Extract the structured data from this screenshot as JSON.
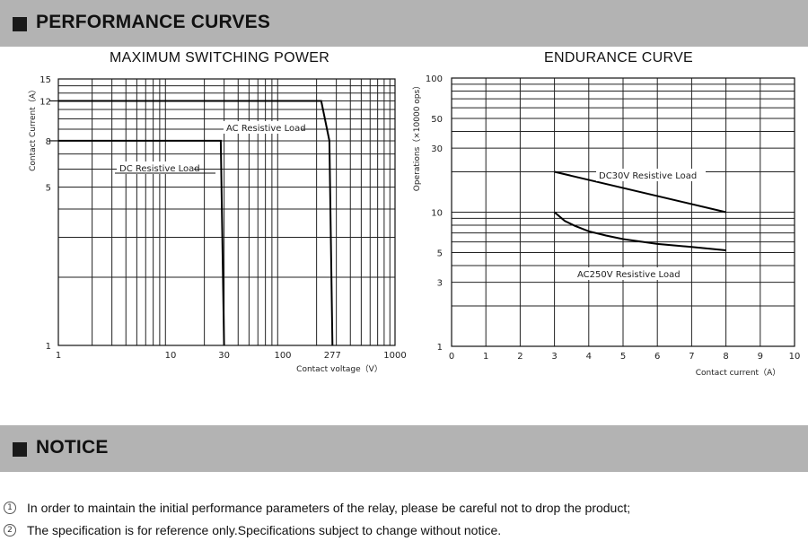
{
  "header": {
    "title": "PERFORMANCE CURVES"
  },
  "notice": {
    "title": "NOTICE",
    "items": [
      {
        "num": "1",
        "text": "In order to maintain the initial performance parameters of the relay, please be careful not to drop the product;"
      },
      {
        "num": "2",
        "text": "The specification is for reference only.Specifications subject to change without notice."
      }
    ]
  },
  "chart_data": [
    {
      "type": "line",
      "title": "MAXIMUM SWITCHING POWER",
      "xlabel": "Contact voltage（V）",
      "ylabel": "Contact Current（A）",
      "xscale": "log",
      "yscale": "log",
      "xlim": [
        1,
        1000
      ],
      "ylim": [
        1,
        15
      ],
      "xticks": [
        1,
        10,
        30,
        100,
        277,
        1000
      ],
      "xtick_labels": [
        "1",
        "10",
        "30",
        "100",
        "277",
        "1000"
      ],
      "yticks": [
        1,
        5,
        8,
        12,
        15
      ],
      "ytick_labels": [
        "1",
        "5",
        "8",
        "12",
        "15"
      ],
      "grid": true,
      "series": [
        {
          "name": "DC Resistive Load",
          "x": [
            1,
            28,
            30
          ],
          "y": [
            8,
            8,
            1
          ]
        },
        {
          "name": "AC Resistive Load",
          "x": [
            1,
            220,
            260,
            277
          ],
          "y": [
            12,
            12,
            8,
            1
          ]
        }
      ]
    },
    {
      "type": "line",
      "title": "ENDURANCE CURVE",
      "xlabel": "Contact current（A）",
      "ylabel": "Operations（×10000 ops）",
      "xscale": "linear",
      "yscale": "log",
      "xlim": [
        0,
        10
      ],
      "ylim": [
        1,
        100
      ],
      "xticks": [
        0,
        1,
        2,
        3,
        4,
        5,
        6,
        7,
        8,
        9,
        10
      ],
      "xtick_labels": [
        "0",
        "1",
        "2",
        "3",
        "4",
        "5",
        "6",
        "7",
        "8",
        "9",
        "10"
      ],
      "yticks": [
        1,
        3,
        5,
        10,
        30,
        50,
        100
      ],
      "ytick_labels": [
        "1",
        "3",
        "5",
        "10",
        "30",
        "50",
        "100"
      ],
      "grid": true,
      "series": [
        {
          "name": "DC30V Resistive Load",
          "x": [
            3,
            8
          ],
          "y": [
            20,
            10
          ]
        },
        {
          "name": "AC250V Resistive Load",
          "x": [
            3,
            3.3,
            3.6,
            4,
            4.5,
            5,
            6,
            7,
            8
          ],
          "y": [
            10,
            8.6,
            7.9,
            7.2,
            6.7,
            6.3,
            5.8,
            5.5,
            5.2
          ]
        }
      ]
    }
  ]
}
